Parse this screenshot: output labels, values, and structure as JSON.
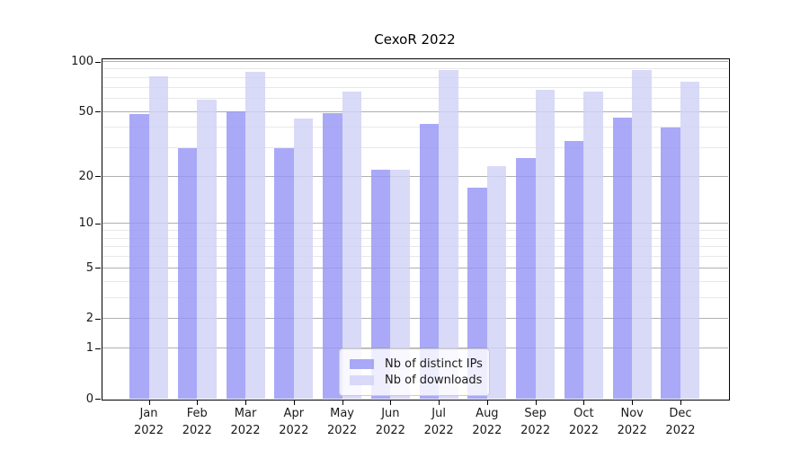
{
  "chart_data": {
    "type": "bar",
    "title": "CexoR 2022",
    "categories": [
      "Jan 2022",
      "Feb 2022",
      "Mar 2022",
      "Apr 2022",
      "May 2022",
      "Jun 2022",
      "Jul 2022",
      "Aug 2022",
      "Sep 2022",
      "Oct 2022",
      "Nov 2022",
      "Dec 2022"
    ],
    "series": [
      {
        "name": "Nb of distinct IPs",
        "color": "#a9a9f7",
        "color_css": "rgba(150,150,245,0.82)",
        "values": [
          48,
          30,
          50,
          30,
          49,
          22,
          42,
          17,
          26,
          33,
          46,
          40
        ]
      },
      {
        "name": "Nb of downloads",
        "color": "#d9d9f8",
        "color_css": "rgba(209,209,246,0.82)",
        "values": [
          81,
          59,
          87,
          45,
          66,
          22,
          89,
          23,
          68,
          66,
          89,
          76
        ]
      }
    ],
    "yscale": "log1p",
    "ylim": [
      0,
      111
    ],
    "yticks": [
      0,
      1,
      2,
      5,
      10,
      20,
      50,
      100
    ],
    "yticks_minor": [
      3,
      4,
      6,
      7,
      8,
      9,
      30,
      40,
      60,
      70,
      80,
      90
    ],
    "grid": true,
    "legend_position": "lower center",
    "colors": {
      "major_grid": "#b0b0b0",
      "minor_grid": "#e8e8e8",
      "spine": "#000000",
      "text": "#1a1a1a"
    }
  }
}
